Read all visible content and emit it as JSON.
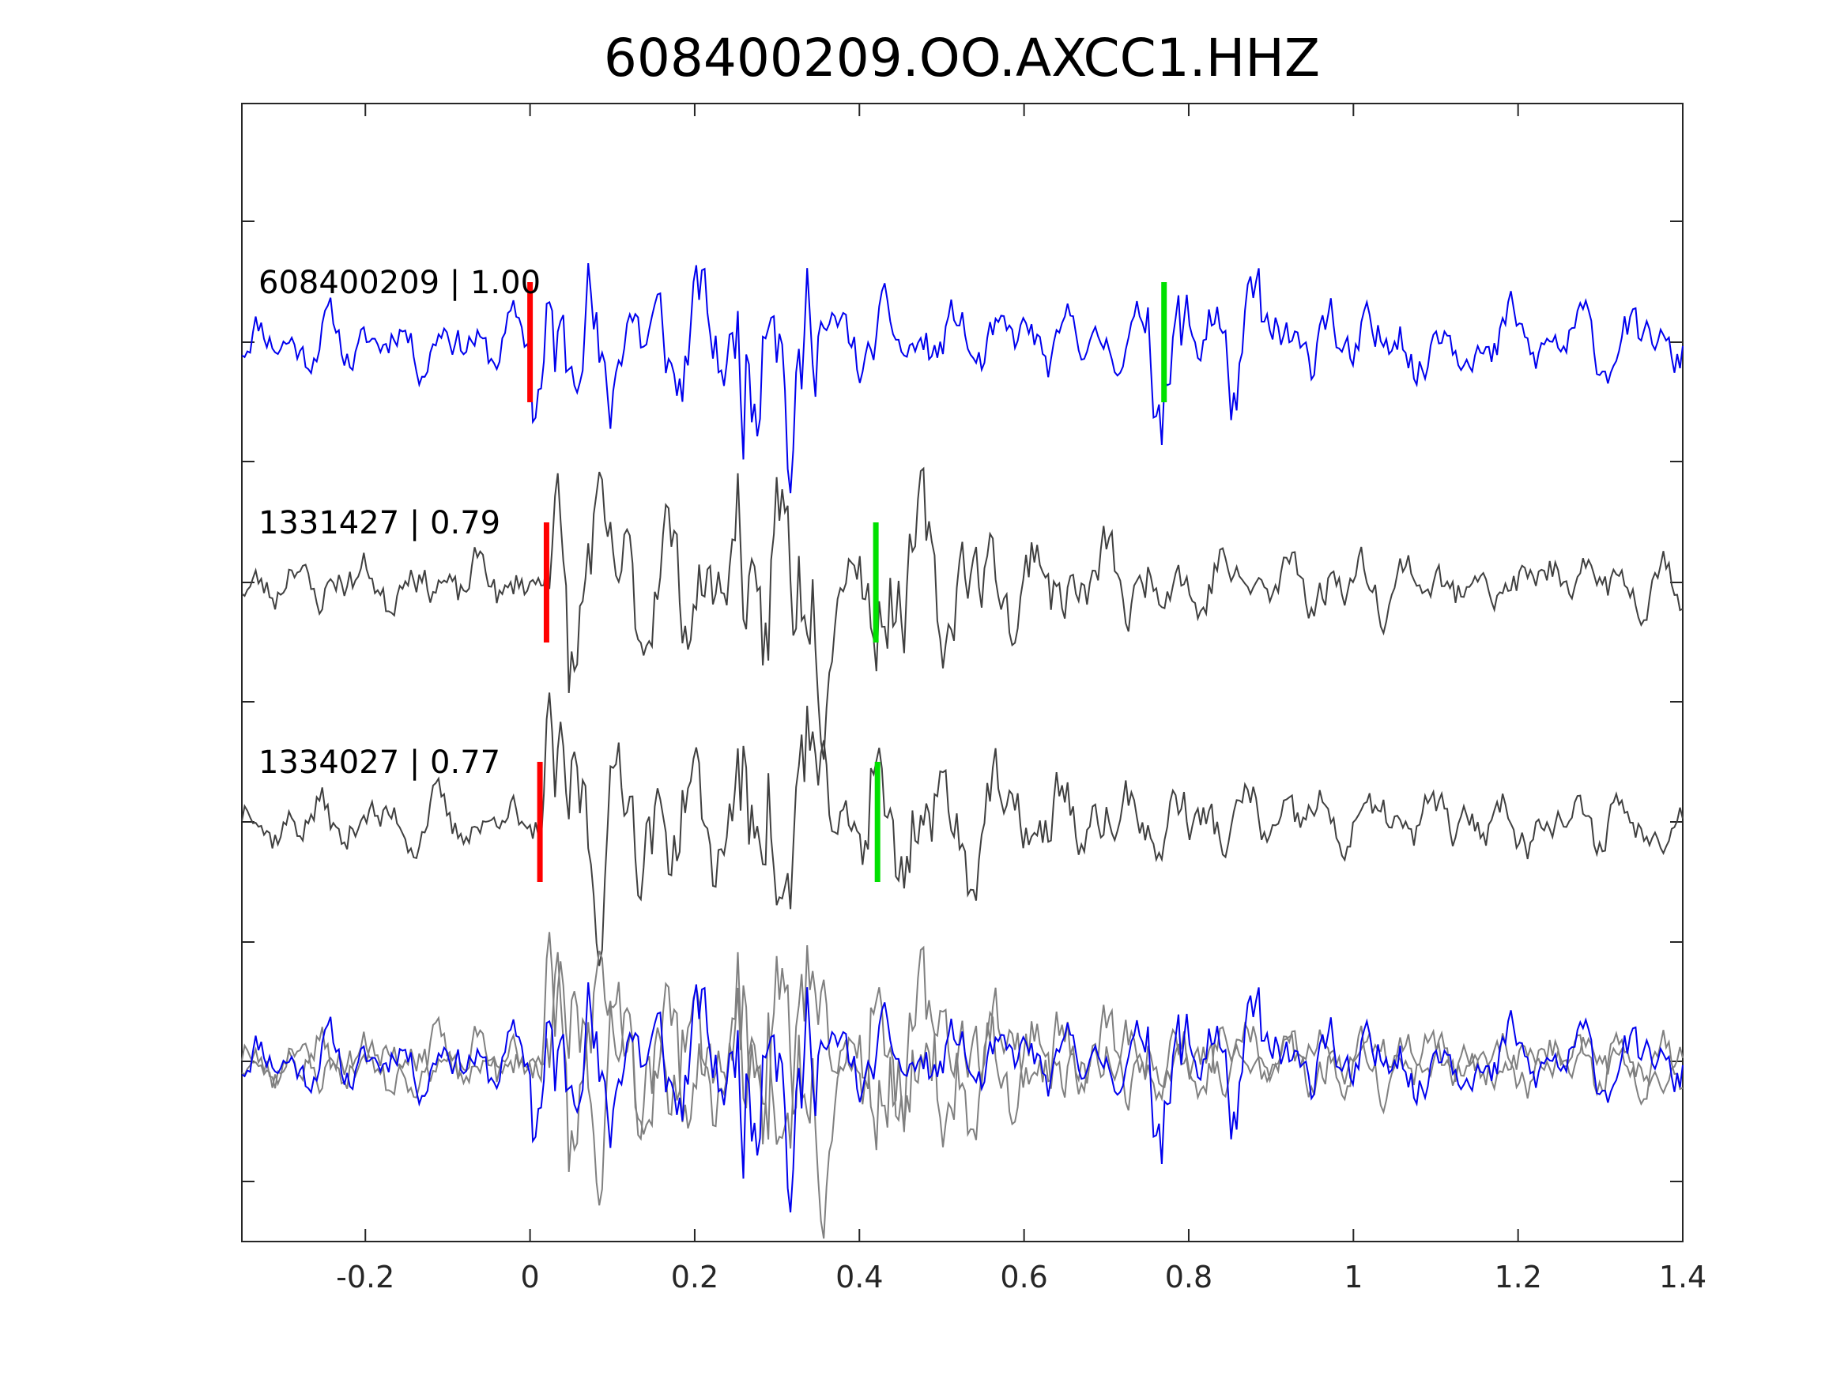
{
  "chart_data": {
    "type": "line",
    "title": "608400209.OO.AXCC1.HHZ",
    "xlabel": "",
    "ylabel": "",
    "xlim": [
      -0.35,
      1.4
    ],
    "x_ticks": [
      -0.2,
      0,
      0.2,
      0.4,
      0.6,
      0.8,
      1,
      1.2,
      1.4
    ],
    "x_tick_labels": [
      "-0.2",
      "0",
      "0.2",
      "0.4",
      "0.6",
      "0.8",
      "1",
      "1.2",
      "1.4"
    ],
    "grid": false,
    "legend": "none",
    "colors": {
      "master": "#0000ee",
      "template": "#404040",
      "overlay_template": "#808080",
      "p_pick": "#ff0000",
      "s_pick": "#00e000"
    },
    "traces": [
      {
        "id": "608400209",
        "cc": "1.00",
        "label": "608400209 | 1.00",
        "color": "#0000ee",
        "p_pick": 0.0,
        "s_pick": 0.77
      },
      {
        "id": "1331427",
        "cc": "0.79",
        "label": "1331427 | 0.79",
        "color": "#404040",
        "p_pick": 0.02,
        "s_pick": 0.42
      },
      {
        "id": "1334027",
        "cc": "0.77",
        "label": "1334027 | 0.77",
        "color": "#404040",
        "p_pick": 0.012,
        "s_pick": 0.422
      }
    ],
    "overlay": {
      "description_visible": false,
      "traces": [
        "608400209",
        "1331427",
        "1334027"
      ]
    }
  }
}
